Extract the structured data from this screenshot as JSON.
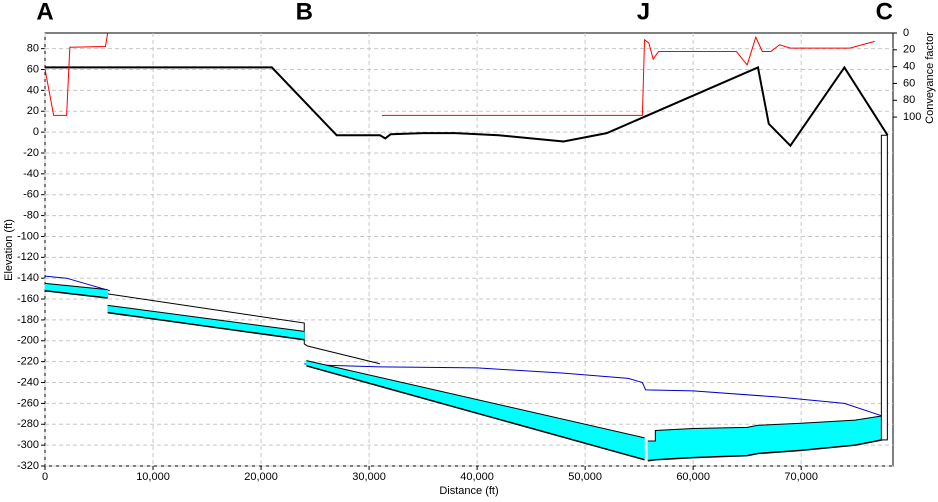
{
  "chart_data": {
    "type": "line",
    "x_label": "Distance (ft)",
    "y_label": "Elevation (ft)",
    "y2_label": "Conveyance factor",
    "xlim": [
      0,
      78500
    ],
    "ylim": [
      -320,
      95
    ],
    "y2lim": [
      0,
      515
    ],
    "y2_inverted": true,
    "grid": true,
    "xticks": [
      0,
      {
        "value": 10000,
        "label": "10,000"
      },
      {
        "value": 20000,
        "label": "20,000"
      },
      {
        "value": 30000,
        "label": "30,000"
      },
      {
        "value": 40000,
        "label": "40,000"
      },
      {
        "value": 50000,
        "label": "50,000"
      },
      {
        "value": 60000,
        "label": "60,000"
      },
      {
        "value": 70000,
        "label": "70,000"
      }
    ],
    "yticks": [
      80,
      60,
      40,
      20,
      0,
      -20,
      -40,
      -60,
      -80,
      -100,
      -120,
      -140,
      -160,
      -180,
      -200,
      -220,
      -240,
      -260,
      -280,
      -300,
      -320
    ],
    "y2ticks": [
      0,
      20,
      40,
      60,
      80,
      100
    ],
    "stations": [
      {
        "text": "A",
        "x": 0
      },
      {
        "text": "B",
        "x": 24000
      },
      {
        "text": "J",
        "x": 55400
      },
      {
        "text": "C",
        "x": 77700
      }
    ],
    "series": [
      {
        "kind": "line",
        "color": "#000000",
        "width": 2,
        "x": [
          0,
          21000,
          27000,
          31000,
          31500,
          32000,
          35000,
          38000,
          42000,
          45000,
          48000,
          52000,
          66000,
          67000,
          69000,
          74000,
          78000
        ],
        "values": [
          62,
          62,
          -3,
          -3,
          -6,
          -2,
          -1,
          -1,
          -3,
          -6,
          -9,
          -1,
          62,
          8,
          -13,
          62,
          -3
        ]
      },
      {
        "kind": "line",
        "color": "#ff0000",
        "width": 1,
        "axis": "y2",
        "x": [
          0,
          800,
          2000,
          2300,
          5600,
          5800,
          null,
          31200,
          55300,
          55500,
          55900,
          56300,
          56800,
          64000,
          65000,
          65800,
          66400,
          67200,
          68000,
          69000,
          74500,
          76800
        ],
        "values": [
          43,
          98,
          98,
          17,
          16,
          0,
          null,
          98,
          98,
          8,
          12,
          31,
          22,
          22,
          38,
          5,
          22,
          22,
          14,
          18,
          18,
          10
        ]
      },
      {
        "kind": "line",
        "color": "#0000cc",
        "width": 1,
        "x": [
          0,
          2000,
          4000,
          6000,
          null,
          24000,
          24500,
          31000,
          40000,
          48000,
          54000,
          55300,
          55600,
          60000,
          68000,
          74000,
          77500
        ],
        "values": [
          -138,
          -140,
          -146,
          -152,
          null,
          -222,
          -223,
          -225,
          -226,
          -231,
          -236,
          -240,
          -247,
          -248,
          -254,
          -260,
          -272
        ]
      },
      {
        "kind": "line",
        "color": "#000000",
        "width": 1,
        "x": [
          5800,
          24000,
          24000,
          24300,
          31000
        ],
        "values": [
          -155,
          -183,
          -203,
          -205,
          -222
        ]
      },
      {
        "kind": "band",
        "color": "#00ffff",
        "x": [
          0,
          5800,
          null,
          5800,
          24000,
          null,
          24200,
          55500,
          null,
          55800,
          56500,
          56500,
          60000,
          65000,
          66000,
          70000,
          75000,
          77500
        ],
        "values": [
          -145,
          -151,
          null,
          -166,
          -191,
          null,
          -219,
          -293,
          null,
          -296,
          -296,
          -286,
          -284,
          -283,
          -281,
          -279,
          -276,
          -272
        ],
        "low": [
          -152,
          -159,
          null,
          -173,
          -199,
          null,
          -224,
          -314,
          null,
          -315,
          -314,
          -314,
          -312,
          -310,
          -308,
          -305,
          -300,
          -295
        ]
      }
    ],
    "shafts": [
      {
        "x": 77700,
        "top": -3,
        "bottom": -295
      }
    ]
  }
}
